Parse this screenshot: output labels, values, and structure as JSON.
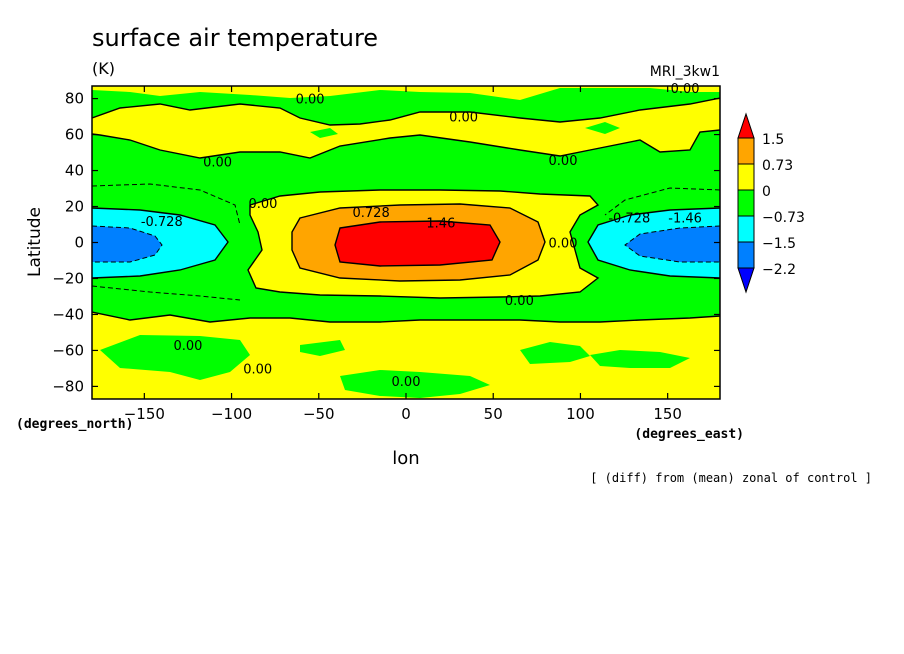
{
  "chart_data": {
    "type": "heatmap",
    "title": "surface air temperature",
    "units": "(K)",
    "model": "MRI_3kw1",
    "xlabel": "lon",
    "ylabel": "Latitude",
    "x_unit": "(degrees_east)",
    "y_unit": "(degrees_north)",
    "footnote": "[ (diff) from (mean) zonal of control ]",
    "xlim": [
      -180,
      180
    ],
    "ylim": [
      -87,
      87
    ],
    "x_ticks": [
      "-150",
      "-100",
      "-50",
      "0",
      "50",
      "100",
      "150"
    ],
    "y_ticks": [
      "80",
      "60",
      "40",
      "20",
      "0",
      "-20",
      "-40",
      "-60",
      "-80"
    ],
    "colorbar": {
      "labels": [
        "1.5",
        "0.73",
        "0",
        "-0.73",
        "-1.5",
        "-2.2"
      ],
      "colors": [
        "#ff0000",
        "#ffa500",
        "#ffff00",
        "#00ff00",
        "#00ffff",
        "#0080ff",
        "#0000ff"
      ]
    },
    "contour_labels": [
      {
        "text": "0.00",
        "x": -55,
        "y": 80
      },
      {
        "text": "0.00",
        "x": 33,
        "y": 70
      },
      {
        "text": "0.00",
        "x": 160,
        "y": 86
      },
      {
        "text": "0.00",
        "x": -108,
        "y": 45
      },
      {
        "text": "0.00",
        "x": 90,
        "y": 46
      },
      {
        "text": "0.00",
        "x": -82,
        "y": 22
      },
      {
        "text": "-0.728",
        "x": -140,
        "y": 12
      },
      {
        "text": "0.728",
        "x": -20,
        "y": 17
      },
      {
        "text": "1.46",
        "x": 20,
        "y": 11
      },
      {
        "text": "0.00",
        "x": 90,
        "y": 0
      },
      {
        "text": "-0.728",
        "x": 128,
        "y": 14
      },
      {
        "text": "-1.46",
        "x": 160,
        "y": 14
      },
      {
        "text": "0.00",
        "x": 65,
        "y": -32
      },
      {
        "text": "0.00",
        "x": -125,
        "y": -57
      },
      {
        "text": "0.00",
        "x": -85,
        "y": -70
      },
      {
        "text": "0.00",
        "x": 0,
        "y": -77
      }
    ]
  }
}
